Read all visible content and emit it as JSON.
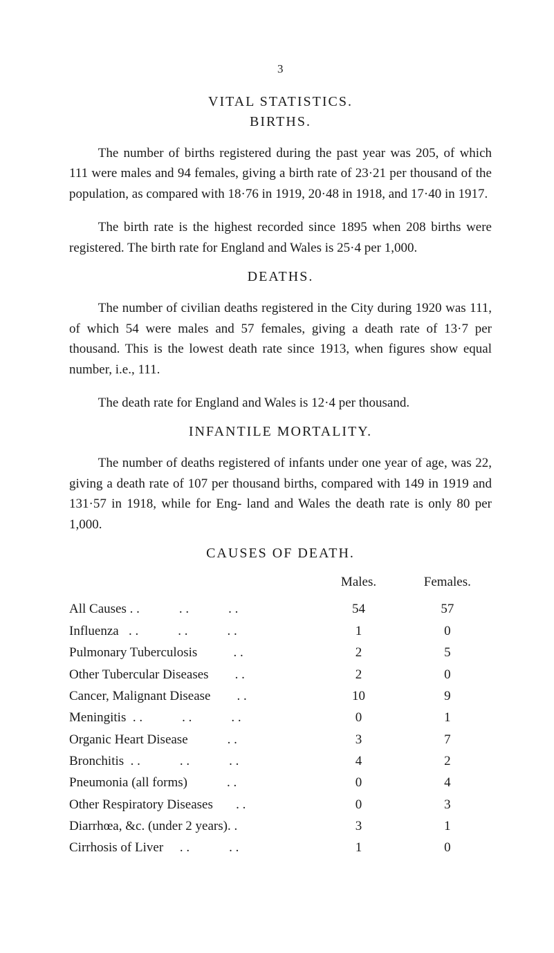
{
  "page_number": "3",
  "vital_title": "VITAL STATISTICS.",
  "births_title": "BIRTHS.",
  "births_para1": "The number of births registered during the past year was 205, of which 111 were males and 94 females, giving a birth rate of 23·21 per thousand of the population, as compared with 18·76 in 1919, 20·48 in 1918, and 17·40 in 1917.",
  "births_para2": "The birth rate is the highest recorded since 1895 when 208 births were registered. The birth rate for England and Wales is 25·4 per 1,000.",
  "deaths_title": "DEATHS.",
  "deaths_para1": "The number of civilian deaths registered in the City during 1920 was 111, of which 54 were males and 57 females, giving a death rate of 13·7 per thousand. This is the lowest death rate since 1913, when figures show equal number, i.e., 111.",
  "deaths_para2": "The death rate for England and Wales is 12·4 per thousand.",
  "infantile_title": "INFANTILE MORTALITY.",
  "infantile_para": "The number of deaths registered of infants under one year of age, was 22, giving a death rate of 107 per thousand births, compared with 149 in 1919 and 131·57 in 1918, while for Eng- land and Wales the death rate is only 80 per 1,000.",
  "causes_title": "CAUSES OF DEATH.",
  "causes_header_males": "Males.",
  "causes_header_females": "Females.",
  "rows": [
    {
      "label": "All Causes . .            . .            . .",
      "m": "54",
      "f": "57"
    },
    {
      "label": "Influenza   . .            . .            . .",
      "m": "1",
      "f": "0"
    },
    {
      "label": "Pulmonary Tuberculosis           . .",
      "m": "2",
      "f": "5"
    },
    {
      "label": "Other Tubercular Diseases        . .",
      "m": "2",
      "f": "0"
    },
    {
      "label": "Cancer, Malignant Disease        . .",
      "m": "10",
      "f": "9"
    },
    {
      "label": "Meningitis  . .            . .            . .",
      "m": "0",
      "f": "1"
    },
    {
      "label": "Organic Heart Disease            . .",
      "m": "3",
      "f": "7"
    },
    {
      "label": "Bronchitis  . .            . .            . .",
      "m": "4",
      "f": "2"
    },
    {
      "label": "Pneumonia (all forms)            . .",
      "m": "0",
      "f": "4"
    },
    {
      "label": "Other Respiratory Diseases       . .",
      "m": "0",
      "f": "3"
    },
    {
      "label": "Diarrhœa, &c. (under 2 years). .",
      "m": "3",
      "f": "1"
    },
    {
      "label": "Cirrhosis of Liver     . .            . .",
      "m": "1",
      "f": "0"
    }
  ]
}
